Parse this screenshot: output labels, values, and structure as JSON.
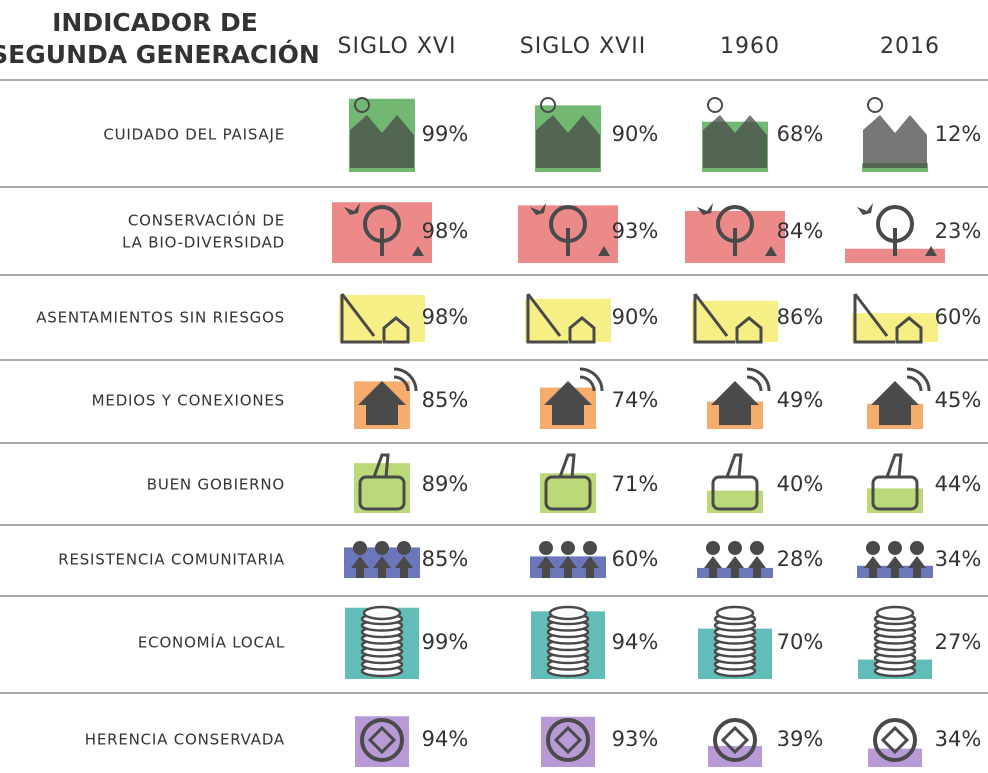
{
  "header": {
    "title_lines": [
      "INDICADOR DE",
      "SEGUNDA GENERACIÓN"
    ],
    "columns": [
      "SIGLO XVI",
      "SIGLO XVII",
      "1960",
      "2016"
    ]
  },
  "table": {
    "rows": [
      {
        "label_lines": [
          "CUIDADO DEL PAISAJE"
        ],
        "color": "#72b872",
        "values": [
          99,
          90,
          68,
          12
        ],
        "value_labels": [
          "99%",
          "90%",
          "68%",
          "12%"
        ]
      },
      {
        "label_lines": [
          "CONSERVACIÓN DE",
          "LA BIO-DIVERSIDAD"
        ],
        "color": "#ec8a8a",
        "values": [
          98,
          93,
          84,
          23
        ],
        "value_labels": [
          "98%",
          "93%",
          "84%",
          "23%"
        ]
      },
      {
        "label_lines": [
          "ASENTAMIENTOS SIN RIESGOS"
        ],
        "color": "#f5ef86",
        "values": [
          98,
          90,
          86,
          60
        ],
        "value_labels": [
          "98%",
          "90%",
          "86%",
          "60%"
        ]
      },
      {
        "label_lines": [
          "MEDIOS Y CONEXIONES"
        ],
        "color": "#f6ac6c",
        "values": [
          85,
          74,
          49,
          45
        ],
        "value_labels": [
          "85%",
          "74%",
          "49%",
          "45%"
        ]
      },
      {
        "label_lines": [
          "BUEN GOBIERNO"
        ],
        "color": "#bcd97a",
        "values": [
          89,
          71,
          40,
          44
        ],
        "value_labels": [
          "89%",
          "71%",
          "40%",
          "44%"
        ]
      },
      {
        "label_lines": [
          "RESISTENCIA COMUNITARIA"
        ],
        "color": "#6c76ba",
        "values": [
          85,
          60,
          28,
          34
        ],
        "value_labels": [
          "85%",
          "60%",
          "28%",
          "34%"
        ]
      },
      {
        "label_lines": [
          "ECONOMÍA LOCAL"
        ],
        "color": "#62bdb8",
        "values": [
          99,
          94,
          70,
          27
        ],
        "value_labels": [
          "99%",
          "94%",
          "70%",
          "27%"
        ]
      },
      {
        "label_lines": [
          "HERENCIA CONSERVADA"
        ],
        "color": "#b79ad6",
        "values": [
          94,
          93,
          39,
          34
        ],
        "value_labels": [
          "94%",
          "93%",
          "39%",
          "34%"
        ]
      }
    ]
  }
}
